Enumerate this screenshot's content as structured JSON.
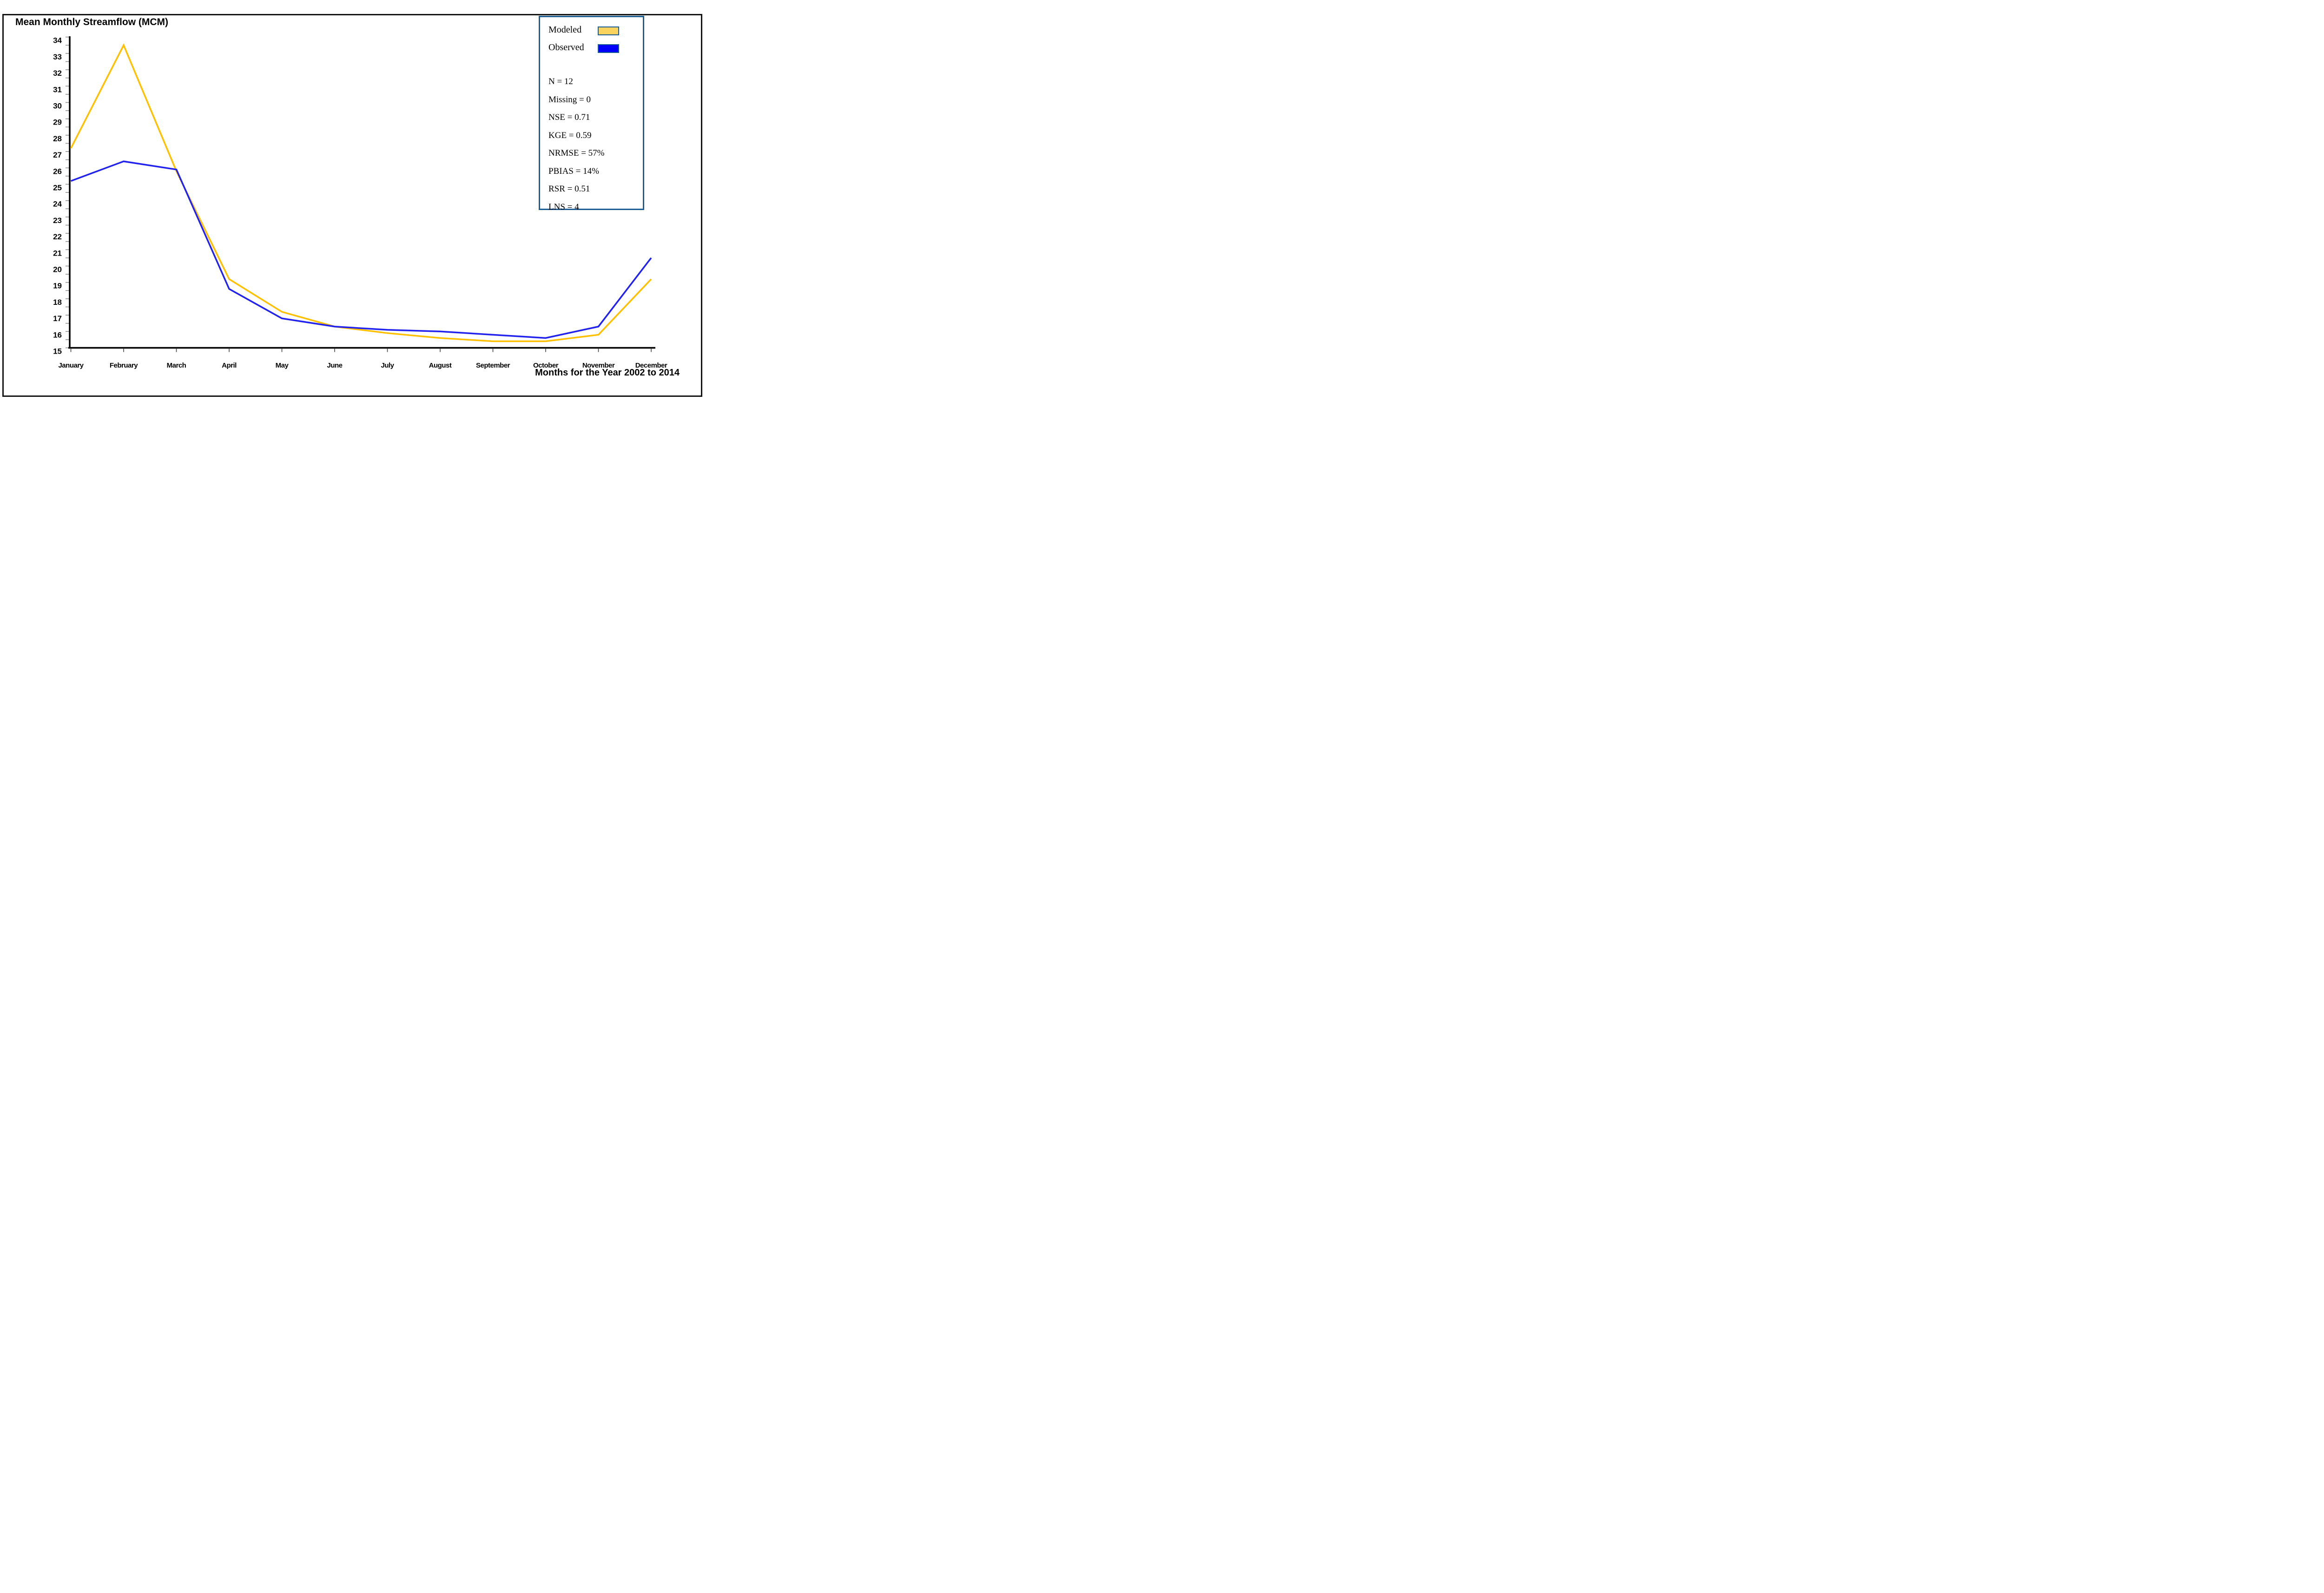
{
  "figure": {
    "title": "Mean Monthly Streamflow (MCM)"
  },
  "chart_data": {
    "type": "line",
    "title": "Mean Monthly Streamflow (MCM)",
    "xlabel": "Months for the Year 2002 to 2014",
    "ylabel": "",
    "ylim": [
      15,
      34
    ],
    "y_tick_step": 1,
    "y_minor_tick_step": 0.5,
    "grid": false,
    "legend_position": "top-right",
    "categories": [
      "January",
      "February",
      "March",
      "April",
      "May",
      "June",
      "July",
      "August",
      "September",
      "October",
      "November",
      "December"
    ],
    "series": [
      {
        "name": "Modeled",
        "color": "#FFC000",
        "values": [
          27.2,
          33.5,
          25.8,
          19.2,
          17.2,
          16.3,
          15.9,
          15.6,
          15.4,
          15.4,
          15.8,
          19.2
        ]
      },
      {
        "name": "Observed",
        "color": "#2222EE",
        "values": [
          25.2,
          26.4,
          25.9,
          18.6,
          16.8,
          16.3,
          16.1,
          16.0,
          15.8,
          15.6,
          16.3,
          20.5
        ]
      }
    ]
  },
  "legend": {
    "border_color": "#1d5e94",
    "items": [
      {
        "label": "Modeled",
        "swatch_fill": "#FAD35E"
      },
      {
        "label": "Observed",
        "swatch_fill": "#0000FA"
      }
    ]
  },
  "stats": {
    "lines": [
      "N = 12",
      "Missing = 0",
      "NSE = 0.71",
      "KGE = 0.59",
      "NRMSE = 57%",
      "PBIAS = 14%",
      "RSR = 0.51",
      "LNS = 4"
    ]
  }
}
